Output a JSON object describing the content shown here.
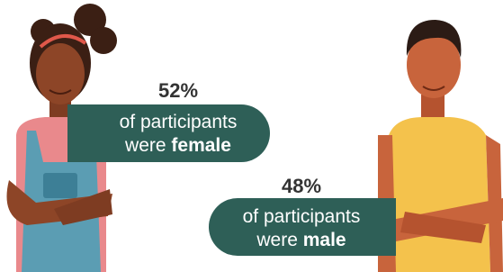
{
  "stats": [
    {
      "percent": "52%",
      "line1": "of participants",
      "line2": "were",
      "emphasis": "female"
    },
    {
      "percent": "48%",
      "line1": "of participants",
      "line2": "were",
      "emphasis": "male"
    }
  ]
}
